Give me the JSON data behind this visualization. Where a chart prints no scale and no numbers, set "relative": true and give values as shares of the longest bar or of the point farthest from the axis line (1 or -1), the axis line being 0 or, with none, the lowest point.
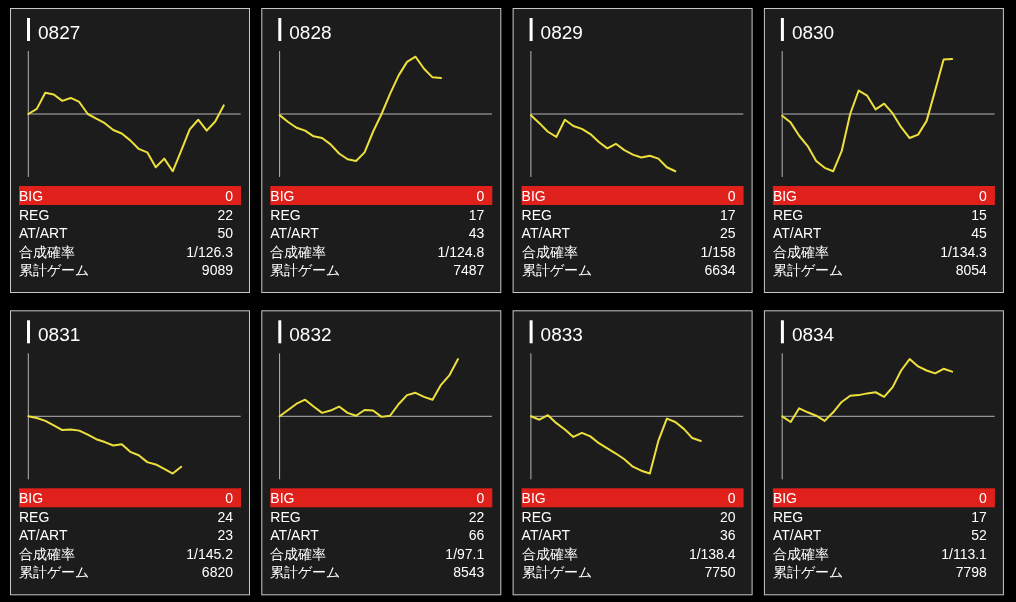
{
  "chart_data": [
    {
      "type": "line",
      "title": "0827",
      "relative": true,
      "categories": [
        null,
        null,
        null,
        null,
        null,
        null,
        null,
        null,
        null,
        null,
        null,
        null,
        null,
        null,
        null,
        null,
        null,
        null,
        null,
        null,
        null,
        null,
        null,
        null,
        null,
        null
      ],
      "series": [
        {
          "color": "#ede03c",
          "values": [
            0,
            0.09,
            0.37,
            0.34,
            0.23,
            0.28,
            0.21,
            0,
            -0.08,
            -0.16,
            -0.28,
            -0.34,
            -0.46,
            -0.61,
            -0.67,
            -0.93,
            -0.78,
            -1,
            -0.64,
            -0.27,
            -0.1,
            -0.29,
            -0.13,
            0.15,
            null,
            null
          ]
        }
      ],
      "annotations": [
        "BIG",
        "0",
        "REG",
        "22",
        "AT/ART",
        "50",
        "合成確率",
        "1/126.3",
        "累計ゲーム",
        "9089"
      ]
    },
    {
      "type": "line",
      "title": "0828",
      "relative": true,
      "categories": [
        null,
        null,
        null,
        null,
        null,
        null,
        null,
        null,
        null,
        null,
        null,
        null,
        null,
        null,
        null,
        null,
        null,
        null,
        null,
        null,
        null,
        null,
        null,
        null,
        null,
        null
      ],
      "series": [
        {
          "color": "#ede03c",
          "values": [
            -0.02,
            -0.14,
            -0.24,
            -0.29,
            -0.39,
            -0.42,
            -0.53,
            -0.69,
            -0.79,
            -0.82,
            -0.67,
            -0.31,
            0,
            0.35,
            0.67,
            0.91,
            1,
            0.79,
            0.64,
            0.63,
            null,
            null,
            null,
            null,
            null,
            null
          ]
        }
      ],
      "annotations": [
        "BIG",
        "0",
        "REG",
        "17",
        "AT/ART",
        "43",
        "合成確率",
        "1/124.8",
        "累計ゲーム",
        "7487"
      ]
    },
    {
      "type": "line",
      "title": "0829",
      "relative": true,
      "categories": [
        null,
        null,
        null,
        null,
        null,
        null,
        null,
        null,
        null,
        null,
        null,
        null,
        null,
        null,
        null,
        null,
        null,
        null,
        null,
        null,
        null,
        null,
        null,
        null,
        null,
        null
      ],
      "series": [
        {
          "color": "#ede03c",
          "values": [
            -0.02,
            -0.16,
            -0.31,
            -0.4,
            -0.1,
            -0.21,
            -0.26,
            -0.35,
            -0.49,
            -0.6,
            -0.52,
            -0.63,
            -0.71,
            -0.76,
            -0.73,
            -0.78,
            -0.93,
            -1,
            null,
            null,
            null,
            null,
            null,
            null,
            null,
            null
          ]
        }
      ],
      "annotations": [
        "BIG",
        "0",
        "REG",
        "17",
        "AT/ART",
        "25",
        "合成確率",
        "1/158",
        "累計ゲーム",
        "6634"
      ]
    },
    {
      "type": "line",
      "title": "0830",
      "relative": true,
      "categories": [
        null,
        null,
        null,
        null,
        null,
        null,
        null,
        null,
        null,
        null,
        null,
        null,
        null,
        null,
        null,
        null,
        null,
        null,
        null,
        null,
        null,
        null,
        null,
        null,
        null,
        null
      ],
      "series": [
        {
          "color": "#ede03c",
          "values": [
            -0.03,
            -0.15,
            -0.38,
            -0.56,
            -0.82,
            -0.94,
            -1,
            -0.65,
            0,
            0.41,
            0.32,
            0.08,
            0.18,
            0.01,
            -0.23,
            -0.42,
            -0.36,
            -0.12,
            0.41,
            0.95,
            0.96,
            null,
            null,
            null,
            null,
            null
          ]
        }
      ],
      "annotations": [
        "BIG",
        "0",
        "REG",
        "15",
        "AT/ART",
        "45",
        "合成確率",
        "1/134.3",
        "累計ゲーム",
        "8054"
      ]
    },
    {
      "type": "line",
      "title": "0831",
      "relative": true,
      "categories": [
        null,
        null,
        null,
        null,
        null,
        null,
        null,
        null,
        null,
        null,
        null,
        null,
        null,
        null,
        null,
        null,
        null,
        null,
        null,
        null,
        null,
        null,
        null,
        null,
        null,
        null
      ],
      "series": [
        {
          "color": "#ede03c",
          "values": [
            0,
            -0.03,
            -0.08,
            -0.16,
            -0.24,
            -0.23,
            -0.25,
            -0.32,
            -0.4,
            -0.45,
            -0.51,
            -0.49,
            -0.62,
            -0.68,
            -0.8,
            -0.84,
            -0.92,
            -1,
            -0.88,
            null,
            null,
            null,
            null,
            null,
            null,
            null
          ]
        }
      ],
      "annotations": [
        "BIG",
        "0",
        "REG",
        "24",
        "AT/ART",
        "23",
        "合成確率",
        "1/145.2",
        "累計ゲーム",
        "6820"
      ]
    },
    {
      "type": "line",
      "title": "0832",
      "relative": true,
      "categories": [
        null,
        null,
        null,
        null,
        null,
        null,
        null,
        null,
        null,
        null,
        null,
        null,
        null,
        null,
        null,
        null,
        null,
        null,
        null,
        null,
        null,
        null,
        null,
        null,
        null,
        null
      ],
      "series": [
        {
          "color": "#ede03c",
          "values": [
            0,
            0.11,
            0.22,
            0.29,
            0.17,
            0.06,
            0.1,
            0.17,
            0.06,
            0.01,
            0.11,
            0.1,
            -0.01,
            0.01,
            0.21,
            0.37,
            0.41,
            0.34,
            0.29,
            0.55,
            0.72,
            1,
            null,
            null,
            null,
            null
          ]
        }
      ],
      "annotations": [
        "BIG",
        "0",
        "REG",
        "22",
        "AT/ART",
        "66",
        "合成確率",
        "1/97.1",
        "累計ゲーム",
        "8543"
      ]
    },
    {
      "type": "line",
      "title": "0833",
      "relative": true,
      "categories": [
        null,
        null,
        null,
        null,
        null,
        null,
        null,
        null,
        null,
        null,
        null,
        null,
        null,
        null,
        null,
        null,
        null,
        null,
        null,
        null,
        null,
        null,
        null,
        null,
        null,
        null
      ],
      "series": [
        {
          "color": "#ede03c",
          "values": [
            0,
            -0.06,
            0.02,
            -0.12,
            -0.23,
            -0.36,
            -0.29,
            -0.35,
            -0.47,
            -0.56,
            -0.65,
            -0.75,
            -0.88,
            -0.95,
            -1,
            -0.43,
            -0.04,
            -0.1,
            -0.22,
            -0.38,
            -0.43,
            null,
            null,
            null,
            null,
            null
          ]
        }
      ],
      "annotations": [
        "BIG",
        "0",
        "REG",
        "20",
        "AT/ART",
        "36",
        "合成確率",
        "1/138.4",
        "累計ゲーム",
        "7750"
      ]
    },
    {
      "type": "line",
      "title": "0834",
      "relative": true,
      "categories": [
        null,
        null,
        null,
        null,
        null,
        null,
        null,
        null,
        null,
        null,
        null,
        null,
        null,
        null,
        null,
        null,
        null,
        null,
        null,
        null,
        null,
        null,
        null,
        null,
        null,
        null
      ],
      "series": [
        {
          "color": "#ede03c",
          "values": [
            0,
            -0.1,
            0.14,
            0.07,
            0.01,
            -0.08,
            0.07,
            0.25,
            0.36,
            0.37,
            0.4,
            0.42,
            0.34,
            0.51,
            0.8,
            1,
            0.87,
            0.8,
            0.75,
            0.83,
            0.78,
            null,
            null,
            null,
            null,
            null
          ]
        }
      ],
      "annotations": [
        "BIG",
        "0",
        "REG",
        "17",
        "AT/ART",
        "52",
        "合成確率",
        "1/113.1",
        "累計ゲーム",
        "7798"
      ]
    }
  ]
}
